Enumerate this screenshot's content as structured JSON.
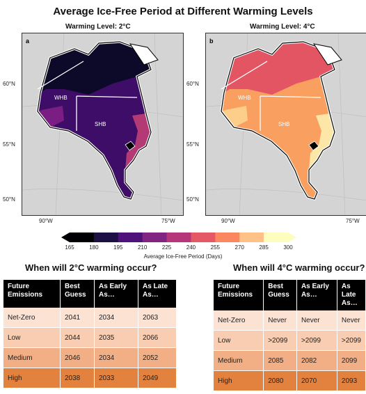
{
  "figure": {
    "title": "Average Ice-Free Period at Different Warming Levels",
    "panels": [
      {
        "letter": "a",
        "subtitle": "Warming Level: 2°C",
        "region_labels": [
          "WHB",
          "SHB"
        ],
        "colors": {
          "bay": "#3d0d68",
          "north": "#0d0929",
          "coast": "#7a1e84",
          "east": "#b33a74"
        }
      },
      {
        "letter": "b",
        "subtitle": "Warming Level: 4°C",
        "region_labels": [
          "WHB",
          "SHB"
        ],
        "colors": {
          "bay": "#f9a061",
          "north": "#e45564",
          "coast": "#fcce8a",
          "east": "#fde7a8"
        }
      }
    ],
    "lat_labels": [
      "60°N",
      "55°N",
      "50°N"
    ],
    "lon_labels": [
      "90°W",
      "75°W"
    ],
    "colorbar": {
      "ticks": [
        "165",
        "180",
        "195",
        "210",
        "225",
        "240",
        "255",
        "270",
        "285",
        "300"
      ],
      "label": "Average Ice-Free Period (Days)",
      "colors": [
        "#000004",
        "#1c1044",
        "#4f127b",
        "#812581",
        "#b5367a",
        "#e55964",
        "#fb8761",
        "#fec287",
        "#fcfdbf"
      ]
    }
  },
  "tables": [
    {
      "heading": "When will 2°C warming occur?",
      "columns": [
        "Future Emissions",
        "Best Guess",
        "As Early As…",
        "As Late As…"
      ],
      "rows": [
        [
          "Net-Zero",
          "2041",
          "2034",
          "2063"
        ],
        [
          "Low",
          "2044",
          "2035",
          "2066"
        ],
        [
          "Medium",
          "2046",
          "2034",
          "2052"
        ],
        [
          "High",
          "2038",
          "2033",
          "2049"
        ]
      ]
    },
    {
      "heading": "When will 4°C warming occur?",
      "columns": [
        "Future Emissions",
        "Best Guess",
        "As Early As…",
        "As Late As…"
      ],
      "rows": [
        [
          "Net-Zero",
          "Never",
          "Never",
          "Never"
        ],
        [
          "Low",
          ">2099",
          ">2099",
          ">2099"
        ],
        [
          "Medium",
          "2085",
          "2082",
          "2099"
        ],
        [
          "High",
          "2080",
          "2070",
          "2093"
        ]
      ]
    }
  ]
}
